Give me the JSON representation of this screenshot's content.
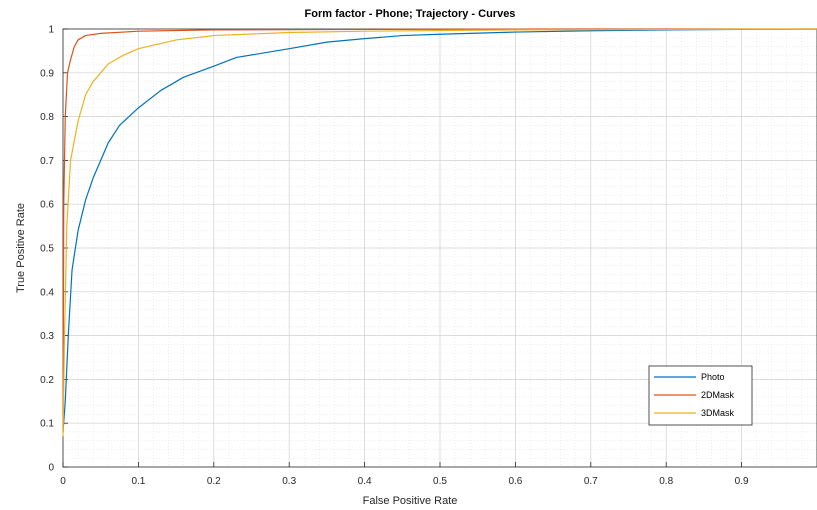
{
  "chart_data": {
    "type": "line",
    "title": "Form factor - Phone;  Trajectory - Curves",
    "xlabel": "False Positive Rate",
    "ylabel": "True Positive Rate",
    "xlim": [
      0,
      1
    ],
    "ylim": [
      0,
      1
    ],
    "x_ticks": [
      0,
      0.1,
      0.2,
      0.3,
      0.4,
      0.5,
      0.6,
      0.7,
      0.8,
      0.9
    ],
    "x_tick_labels": [
      "0",
      "0.1",
      "0.2",
      "0.3",
      "0.4",
      "0.5",
      "0.6",
      "0.7",
      "0.8",
      "0.9"
    ],
    "y_ticks": [
      0,
      0.1,
      0.2,
      0.3,
      0.4,
      0.5,
      0.6,
      0.7,
      0.8,
      0.9,
      1
    ],
    "y_tick_labels": [
      "0",
      "0.1",
      "0.2",
      "0.3",
      "0.4",
      "0.5",
      "0.6",
      "0.7",
      "0.8",
      "0.9",
      "1"
    ],
    "grid": true,
    "minor_grid": true,
    "legend_position": "bottom-right",
    "series": [
      {
        "name": "Photo",
        "color": "#0072BD",
        "points": [
          [
            0,
            0.08
          ],
          [
            0.003,
            0.15
          ],
          [
            0.007,
            0.3
          ],
          [
            0.012,
            0.45
          ],
          [
            0.02,
            0.54
          ],
          [
            0.03,
            0.61
          ],
          [
            0.04,
            0.66
          ],
          [
            0.06,
            0.74
          ],
          [
            0.075,
            0.78
          ],
          [
            0.1,
            0.82
          ],
          [
            0.13,
            0.86
          ],
          [
            0.16,
            0.89
          ],
          [
            0.2,
            0.915
          ],
          [
            0.23,
            0.935
          ],
          [
            0.3,
            0.955
          ],
          [
            0.35,
            0.97
          ],
          [
            0.4,
            0.978
          ],
          [
            0.45,
            0.985
          ],
          [
            0.5,
            0.988
          ],
          [
            0.6,
            0.993
          ],
          [
            0.7,
            0.996
          ],
          [
            0.8,
            0.998
          ],
          [
            0.9,
            0.999
          ],
          [
            1.0,
            1.0
          ]
        ]
      },
      {
        "name": "2DMask",
        "color": "#D95319",
        "points": [
          [
            0,
            0.08
          ],
          [
            0.001,
            0.6
          ],
          [
            0.003,
            0.8
          ],
          [
            0.006,
            0.9
          ],
          [
            0.01,
            0.93
          ],
          [
            0.015,
            0.96
          ],
          [
            0.02,
            0.975
          ],
          [
            0.03,
            0.985
          ],
          [
            0.05,
            0.99
          ],
          [
            0.1,
            0.995
          ],
          [
            0.2,
            0.998
          ],
          [
            0.4,
            0.999
          ],
          [
            0.7,
            1.0
          ],
          [
            1.0,
            1.0
          ]
        ]
      },
      {
        "name": "3DMask",
        "color": "#EDB120",
        "points": [
          [
            0,
            0.07
          ],
          [
            0.002,
            0.3
          ],
          [
            0.005,
            0.55
          ],
          [
            0.01,
            0.7
          ],
          [
            0.02,
            0.79
          ],
          [
            0.03,
            0.85
          ],
          [
            0.04,
            0.88
          ],
          [
            0.06,
            0.92
          ],
          [
            0.08,
            0.94
          ],
          [
            0.1,
            0.955
          ],
          [
            0.15,
            0.975
          ],
          [
            0.2,
            0.985
          ],
          [
            0.3,
            0.992
          ],
          [
            0.4,
            0.995
          ],
          [
            0.6,
            0.998
          ],
          [
            0.8,
            0.999
          ],
          [
            1.0,
            1.0
          ]
        ]
      }
    ]
  }
}
